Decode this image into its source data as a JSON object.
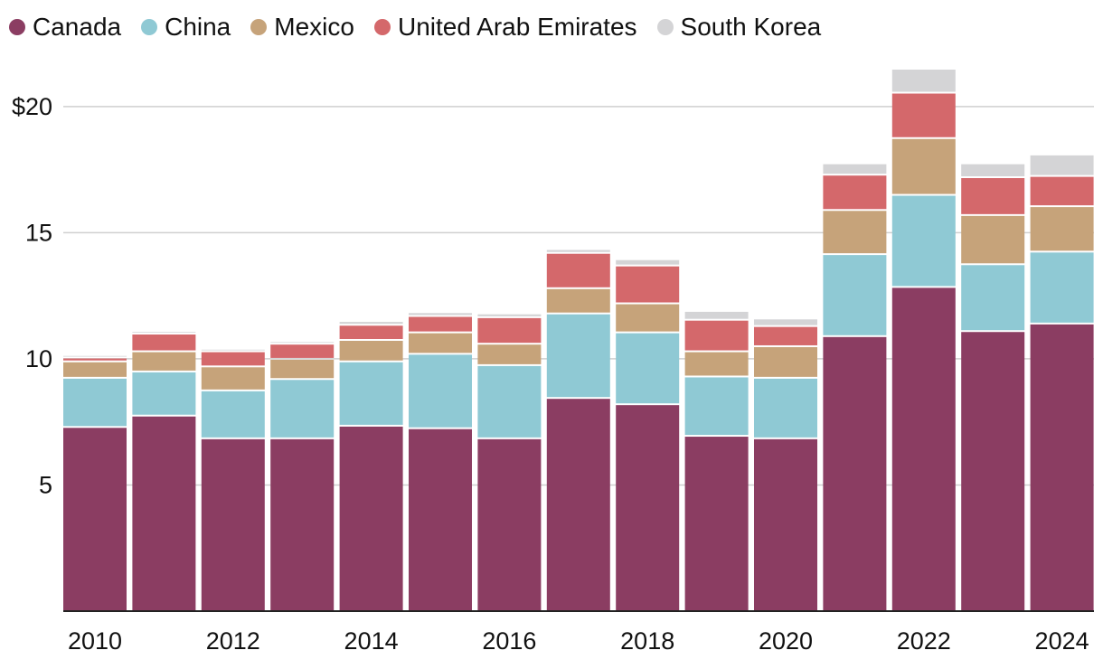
{
  "chart_data": {
    "type": "bar",
    "stacked": true,
    "title": "",
    "xlabel": "",
    "ylabel": "",
    "ylim": [
      0,
      21.5
    ],
    "y_ticks": [
      {
        "value": 5,
        "label": "5"
      },
      {
        "value": 10,
        "label": "10"
      },
      {
        "value": 15,
        "label": "15"
      },
      {
        "value": 20,
        "label": "$20"
      }
    ],
    "categories": [
      "2010",
      "2011",
      "2012",
      "2013",
      "2014",
      "2015",
      "2016",
      "2017",
      "2018",
      "2019",
      "2020",
      "2021",
      "2022",
      "2023",
      "2024"
    ],
    "x_tick_labels": [
      "2010",
      "2012",
      "2014",
      "2016",
      "2018",
      "2020",
      "2022",
      "2024"
    ],
    "legend_position": "top-left",
    "series": [
      {
        "name": "Canada",
        "color": "#8b3d62",
        "values": [
          7.3,
          7.75,
          6.85,
          6.85,
          7.35,
          7.25,
          6.85,
          8.45,
          8.2,
          6.95,
          6.85,
          10.9,
          12.85,
          11.1,
          11.4
        ]
      },
      {
        "name": "China",
        "color": "#8fc9d4",
        "values": [
          1.95,
          1.75,
          1.9,
          2.35,
          2.55,
          2.95,
          2.9,
          3.35,
          2.85,
          2.35,
          2.4,
          3.25,
          3.65,
          2.65,
          2.85
        ]
      },
      {
        "name": "Mexico",
        "color": "#c6a37a",
        "values": [
          0.65,
          0.8,
          0.95,
          0.8,
          0.85,
          0.85,
          0.85,
          1.0,
          1.15,
          1.0,
          1.25,
          1.75,
          2.25,
          1.95,
          1.8
        ]
      },
      {
        "name": "United Arab Emirates",
        "color": "#d4686b",
        "values": [
          0.15,
          0.7,
          0.6,
          0.6,
          0.6,
          0.65,
          1.05,
          1.4,
          1.5,
          1.25,
          0.8,
          1.4,
          1.8,
          1.5,
          1.2
        ]
      },
      {
        "name": "South Korea",
        "color": "#d4d4d6",
        "values": [
          0.1,
          0.1,
          0.1,
          0.1,
          0.15,
          0.15,
          0.15,
          0.15,
          0.25,
          0.35,
          0.3,
          0.45,
          0.95,
          0.55,
          0.85
        ]
      }
    ]
  }
}
